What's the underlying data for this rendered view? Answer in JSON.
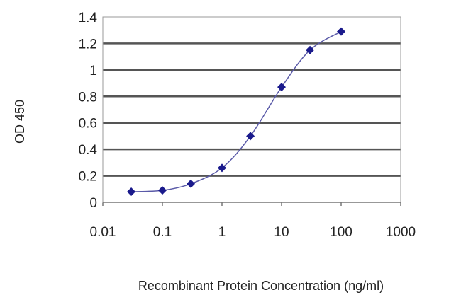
{
  "chart_data": {
    "type": "line",
    "title": "",
    "xlabel": "Recombinant Protein Concentration (ng/ml)",
    "ylabel": "OD 450",
    "xscale": "log",
    "xlim": [
      0.01,
      1000
    ],
    "ylim": [
      0,
      1.4
    ],
    "xticks": [
      0.01,
      0.1,
      1,
      10,
      100,
      1000
    ],
    "xtick_labels": [
      "0.01",
      "0.1",
      "1",
      "10",
      "100",
      "1000"
    ],
    "yticks": [
      0,
      0.2,
      0.4,
      0.6,
      0.8,
      1,
      1.2,
      1.4
    ],
    "ytick_labels": [
      "0",
      "0.2",
      "0.4",
      "0.6",
      "0.8",
      "1",
      "1.2",
      "1.4"
    ],
    "grid": "horizontal",
    "series": [
      {
        "x": [
          0.03,
          0.1,
          0.3,
          1,
          3,
          10,
          30,
          100
        ],
        "y": [
          0.08,
          0.09,
          0.14,
          0.26,
          0.5,
          0.87,
          1.15,
          1.29
        ],
        "marker": "diamond",
        "smooth": true
      }
    ],
    "colors": {
      "series": "#1a1a8c",
      "line": "#5a5aa8",
      "grid": "#555555"
    }
  }
}
